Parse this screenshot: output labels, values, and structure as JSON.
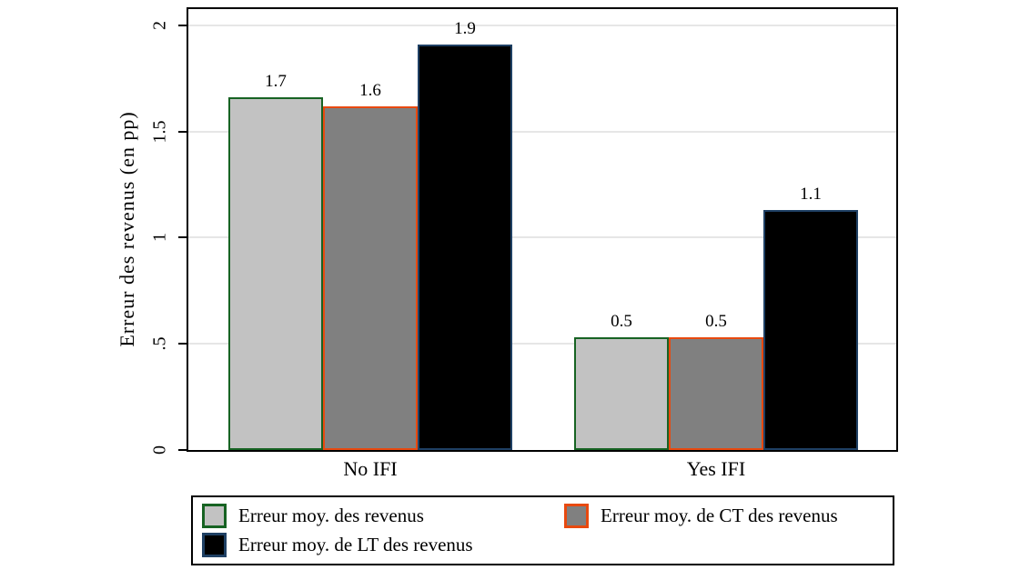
{
  "chart_data": {
    "type": "bar",
    "title": "",
    "xlabel": "",
    "ylabel": "Erreur des revenus (en pp)",
    "categories": [
      "No IFI",
      "Yes IFI"
    ],
    "series": [
      {
        "name": "Erreur moy. des revenus",
        "values": [
          1.7,
          0.5
        ],
        "plot_values": [
          1.66,
          0.53
        ],
        "value_labels": [
          "1.7",
          "0.5"
        ],
        "fill": "#c2c2c2",
        "border": "#176323"
      },
      {
        "name": "Erreur moy. de CT des revenus",
        "values": [
          1.6,
          0.5
        ],
        "plot_values": [
          1.62,
          0.53
        ],
        "value_labels": [
          "1.6",
          "0.5"
        ],
        "fill": "#808080",
        "border": "#e8490f"
      },
      {
        "name": "Erreur moy. de LT des revenus",
        "values": [
          1.9,
          1.1
        ],
        "plot_values": [
          1.91,
          1.13
        ],
        "value_labels": [
          "1.9",
          "1.1"
        ],
        "fill": "#000000",
        "border": "#1f4064"
      }
    ],
    "yticks": [
      {
        "label": "0",
        "value": 0
      },
      {
        "label": ".5",
        "value": 0.5
      },
      {
        "label": "1",
        "value": 1
      },
      {
        "label": "1.5",
        "value": 1.5
      },
      {
        "label": "2",
        "value": 2
      }
    ],
    "ylim": [
      0,
      2.077
    ],
    "grid": true,
    "grid_color": "#e6e6e6",
    "axis_color": "#000000",
    "background": "#ffffff",
    "legend_position": "bottom"
  }
}
